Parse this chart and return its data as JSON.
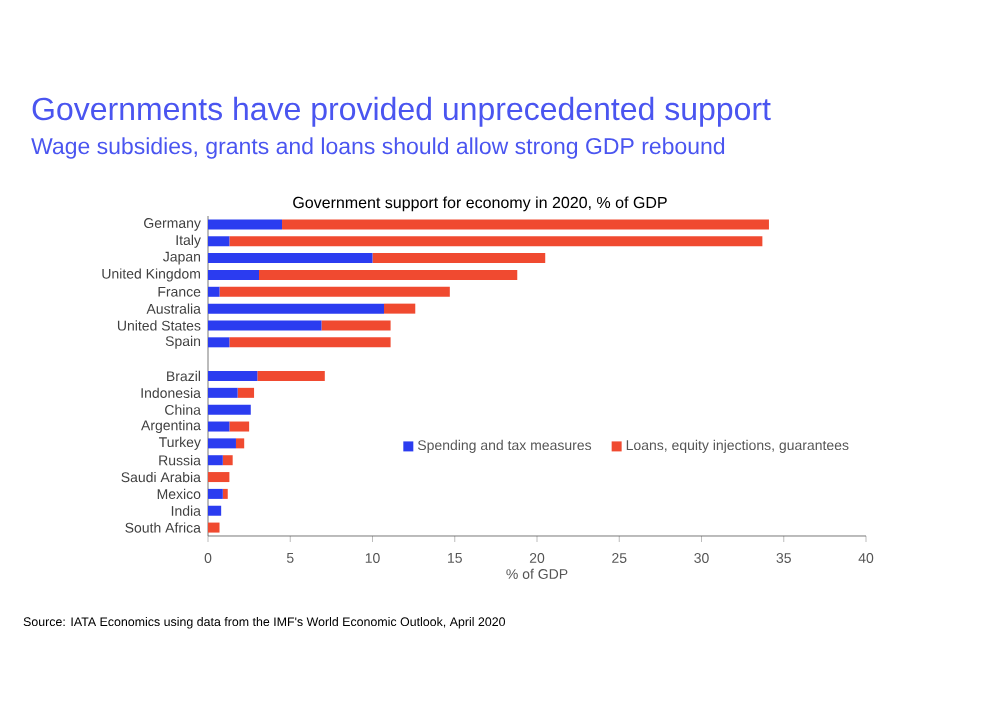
{
  "chart_data": {
    "type": "bar",
    "orientation": "horizontal",
    "stacked": true,
    "title": "Governments have provided unprecedented support",
    "subtitle": "Wage subsidies, grants and loans should allow strong GDP rebound",
    "annotations": [
      "Government support for economy in 2020, % of GDP",
      "Source: IATA Economics using data from the IMF's World Economic Outlook, April 2020"
    ],
    "xlabel": "% of GDP",
    "categories": [
      "Germany",
      "Italy",
      "Japan",
      "United Kingdom",
      "France",
      "Australia",
      "United States",
      "Spain",
      null,
      "Brazil",
      "Indonesia",
      "China",
      "Argentina",
      "Turkey",
      "Russia",
      "Saudi Arabia",
      "Mexico",
      "India",
      "South Africa"
    ],
    "series": [
      {
        "name": "Spending and tax measures",
        "color": "#2b3cf0",
        "values": [
          4.5,
          1.3,
          10.0,
          3.1,
          0.7,
          10.7,
          6.9,
          1.3,
          null,
          3.0,
          1.8,
          2.6,
          1.3,
          1.7,
          0.9,
          0.0,
          0.9,
          0.8,
          0.0
        ]
      },
      {
        "name": "Loans, equity injections, guarantees",
        "color": "#f04a30",
        "values": [
          29.6,
          32.4,
          10.5,
          15.7,
          14.0,
          1.9,
          4.2,
          9.8,
          null,
          4.1,
          1.0,
          0.0,
          1.2,
          0.5,
          0.6,
          1.3,
          0.3,
          0.0,
          0.7
        ]
      }
    ],
    "xlim": [
      0,
      40
    ],
    "xticks": [
      0,
      5,
      10,
      15,
      20,
      25,
      30,
      35,
      40
    ],
    "grid": false,
    "legend": "right"
  }
}
